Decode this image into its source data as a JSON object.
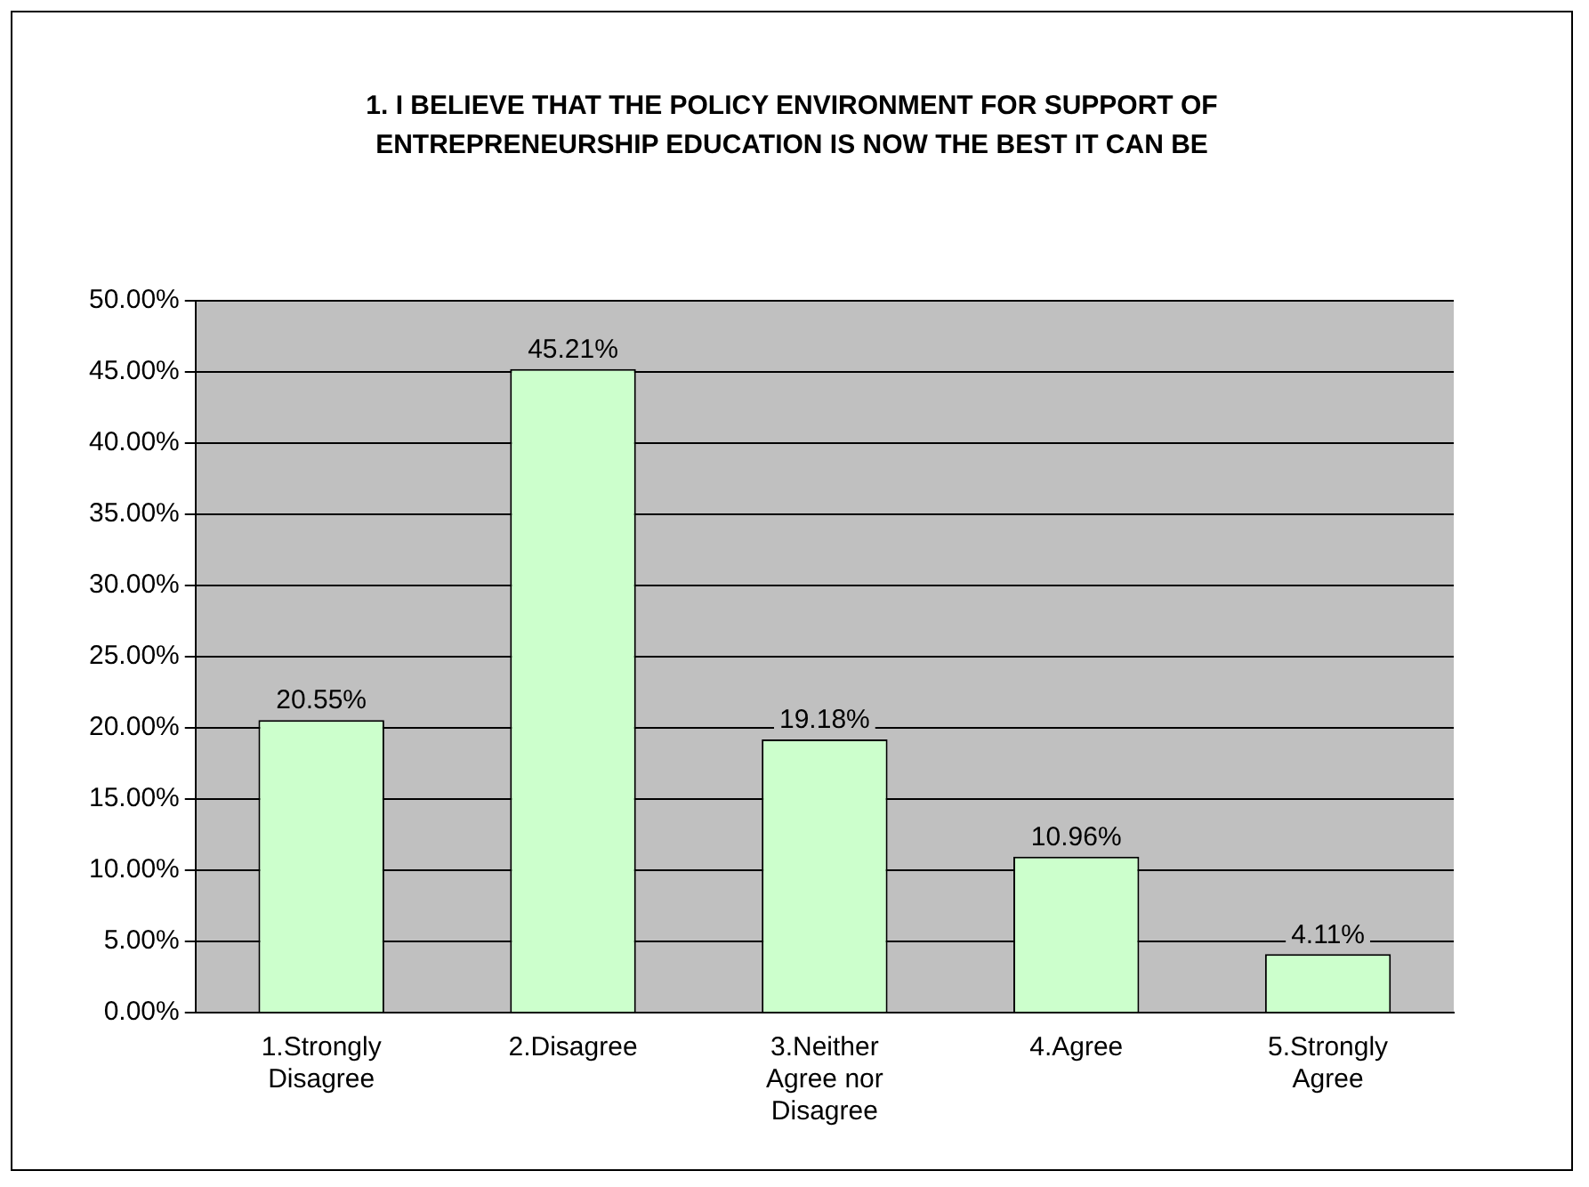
{
  "chart_data": {
    "type": "bar",
    "title": "1. I BELIEVE THAT THE POLICY ENVIRONMENT FOR SUPPORT OF ENTREPRENEURSHIP EDUCATION IS NOW THE BEST IT CAN BE",
    "categories": [
      "1.Strongly Disagree",
      "2.Disagree",
      "3.Neither Agree nor Disagree",
      "4.Agree",
      "5.Strongly Agree"
    ],
    "values": [
      20.55,
      45.21,
      19.18,
      10.96,
      4.11
    ],
    "value_labels": [
      "20.55%",
      "45.21%",
      "19.18%",
      "10.96%",
      "4.11%"
    ],
    "color": "#ccffcc",
    "ylim": [
      0,
      50
    ],
    "yticks": [
      {
        "value": 0,
        "label": "0.00%"
      },
      {
        "value": 5,
        "label": "5.00%"
      },
      {
        "value": 10,
        "label": "10.00%"
      },
      {
        "value": 15,
        "label": "15.00%"
      },
      {
        "value": 20,
        "label": "20.00%"
      },
      {
        "value": 25,
        "label": "25.00%"
      },
      {
        "value": 30,
        "label": "30.00%"
      },
      {
        "value": 35,
        "label": "35.00%"
      },
      {
        "value": 40,
        "label": "40.00%"
      },
      {
        "value": 45,
        "label": "45.00%"
      },
      {
        "value": 50,
        "label": "50.00%"
      }
    ],
    "grid": "y"
  }
}
